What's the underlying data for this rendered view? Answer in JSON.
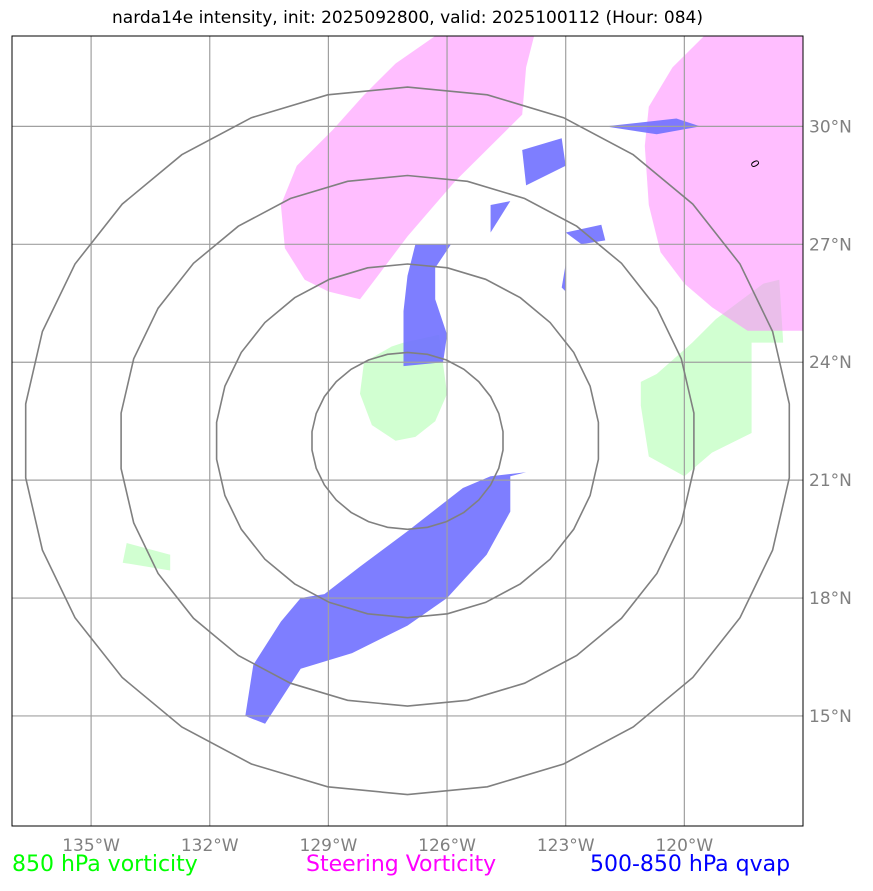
{
  "chart_data": {
    "type": "contour-map",
    "title": "narda14e intensity, init: 2025092800, valid: 2025100112 (Hour: 084)",
    "xlim": [
      -137.0,
      -117.0
    ],
    "ylim": [
      12.2,
      32.3
    ],
    "x_ticks": [
      {
        "value": -135,
        "label": "135°W"
      },
      {
        "value": -132,
        "label": "132°W"
      },
      {
        "value": -129,
        "label": "129°W"
      },
      {
        "value": -126,
        "label": "126°W"
      },
      {
        "value": -123,
        "label": "123°W"
      },
      {
        "value": -120,
        "label": "120°W"
      }
    ],
    "y_ticks": [
      {
        "value": 15,
        "label": "15°N"
      },
      {
        "value": 18,
        "label": "18°N"
      },
      {
        "value": 21,
        "label": "21°N"
      },
      {
        "value": 24,
        "label": "24°N"
      },
      {
        "value": 27,
        "label": "27°N"
      },
      {
        "value": 30,
        "label": "30°N"
      }
    ],
    "range_rings": {
      "center": [
        -127.0,
        22.0
      ],
      "radii_deg": [
        2.25,
        4.5,
        6.75,
        9.0
      ]
    },
    "contour_label": {
      "text": "0",
      "lon": -118.3,
      "lat": 29.0,
      "color": "#000000"
    },
    "fields": [
      {
        "name": "850 hPa vorticity",
        "color": "#ccffcc",
        "polygons": [
          [
            [
              -127.1,
              24.5
            ],
            [
              -126.2,
              24.7
            ],
            [
              -126.0,
              23.2
            ],
            [
              -126.3,
              22.5
            ],
            [
              -126.8,
              22.1
            ],
            [
              -127.3,
              22.0
            ],
            [
              -127.9,
              22.4
            ],
            [
              -128.2,
              23.2
            ],
            [
              -128.1,
              24.0
            ],
            [
              -127.4,
              24.4
            ]
          ],
          [
            [
              -119.2,
              25.1
            ],
            [
              -118.0,
              26.0
            ],
            [
              -117.6,
              26.1
            ],
            [
              -117.5,
              24.5
            ],
            [
              -118.3,
              24.5
            ],
            [
              -118.3,
              22.2
            ],
            [
              -119.3,
              21.7
            ],
            [
              -120.0,
              21.1
            ],
            [
              -120.9,
              21.6
            ],
            [
              -121.1,
              22.9
            ],
            [
              -121.1,
              23.5
            ],
            [
              -120.7,
              23.7
            ],
            [
              -119.8,
              24.5
            ]
          ],
          [
            [
              -134.1,
              19.4
            ],
            [
              -133.0,
              19.1
            ],
            [
              -133.0,
              18.7
            ],
            [
              -134.2,
              18.9
            ]
          ]
        ]
      },
      {
        "name": "Steering Vorticity",
        "color": "#ff88ff",
        "polygons": [
          [
            [
              -128.1,
              30.8
            ],
            [
              -127.3,
              31.6
            ],
            [
              -126.3,
              32.3
            ],
            [
              -123.8,
              32.3
            ],
            [
              -124.0,
              31.5
            ],
            [
              -124.1,
              30.3
            ],
            [
              -124.9,
              29.5
            ],
            [
              -125.8,
              28.6
            ],
            [
              -126.4,
              27.9
            ],
            [
              -127.0,
              27.2
            ],
            [
              -127.9,
              26.0
            ],
            [
              -128.2,
              25.6
            ],
            [
              -129.0,
              25.8
            ],
            [
              -129.6,
              26.1
            ],
            [
              -130.1,
              26.9
            ],
            [
              -130.2,
              28.0
            ],
            [
              -129.8,
              29.0
            ],
            [
              -128.9,
              29.9
            ]
          ],
          [
            [
              -119.5,
              32.3
            ],
            [
              -117.0,
              32.3
            ],
            [
              -117.0,
              24.8
            ],
            [
              -118.4,
              24.8
            ],
            [
              -119.3,
              25.4
            ],
            [
              -120.0,
              26.0
            ],
            [
              -120.6,
              26.8
            ],
            [
              -120.9,
              28.0
            ],
            [
              -121.0,
              29.5
            ],
            [
              -120.9,
              30.5
            ],
            [
              -120.3,
              31.5
            ]
          ]
        ]
      },
      {
        "name": "500-850 hPa qvap",
        "color": "#7070ff",
        "polygons": [
          [
            [
              -126.8,
              27.0
            ],
            [
              -125.9,
              27.0
            ],
            [
              -126.3,
              26.4
            ],
            [
              -126.3,
              25.6
            ],
            [
              -126.0,
              24.7
            ],
            [
              -126.1,
              24.0
            ],
            [
              -127.1,
              23.9
            ],
            [
              -127.1,
              24.7
            ],
            [
              -127.1,
              25.3
            ],
            [
              -127.0,
              26.2
            ]
          ],
          [
            [
              -124.4,
              28.1
            ],
            [
              -124.9,
              27.3
            ],
            [
              -124.9,
              28.0
            ]
          ],
          [
            [
              -123.0,
              29.0
            ],
            [
              -124.0,
              28.5
            ],
            [
              -124.1,
              29.4
            ],
            [
              -123.1,
              29.7
            ]
          ],
          [
            [
              -123.0,
              27.3
            ],
            [
              -122.1,
              27.5
            ],
            [
              -122.0,
              27.1
            ],
            [
              -122.6,
              27.0
            ]
          ],
          [
            [
              -123.0,
              26.5
            ],
            [
              -123.0,
              25.8
            ],
            [
              -123.1,
              25.9
            ]
          ],
          [
            [
              -122.0,
              30.0
            ],
            [
              -120.2,
              30.2
            ],
            [
              -119.6,
              30.0
            ],
            [
              -120.7,
              29.8
            ]
          ],
          [
            [
              -124.0,
              21.2
            ],
            [
              -124.4,
              21.1
            ],
            [
              -124.4,
              20.2
            ],
            [
              -125.0,
              19.1
            ],
            [
              -126.0,
              18.0
            ],
            [
              -127.0,
              17.3
            ],
            [
              -128.4,
              16.6
            ],
            [
              -129.7,
              16.2
            ],
            [
              -130.6,
              14.8
            ],
            [
              -131.1,
              15.0
            ],
            [
              -130.9,
              16.3
            ],
            [
              -130.2,
              17.4
            ],
            [
              -129.7,
              18.0
            ],
            [
              -129.1,
              18.1
            ],
            [
              -128.2,
              18.8
            ],
            [
              -127.0,
              19.7
            ],
            [
              -125.6,
              20.8
            ],
            [
              -124.9,
              21.1
            ]
          ]
        ]
      }
    ]
  },
  "legend": {
    "green": "850 hPa vorticity",
    "magenta": "Steering Vorticity",
    "blue": "500-850 hPa qvap"
  },
  "colors": {
    "vorticity_850": "#ccffcc",
    "steering": "#ff88ff",
    "qvap": "#7070ff",
    "grid": "#a0a0a0",
    "ring": "#808080"
  }
}
